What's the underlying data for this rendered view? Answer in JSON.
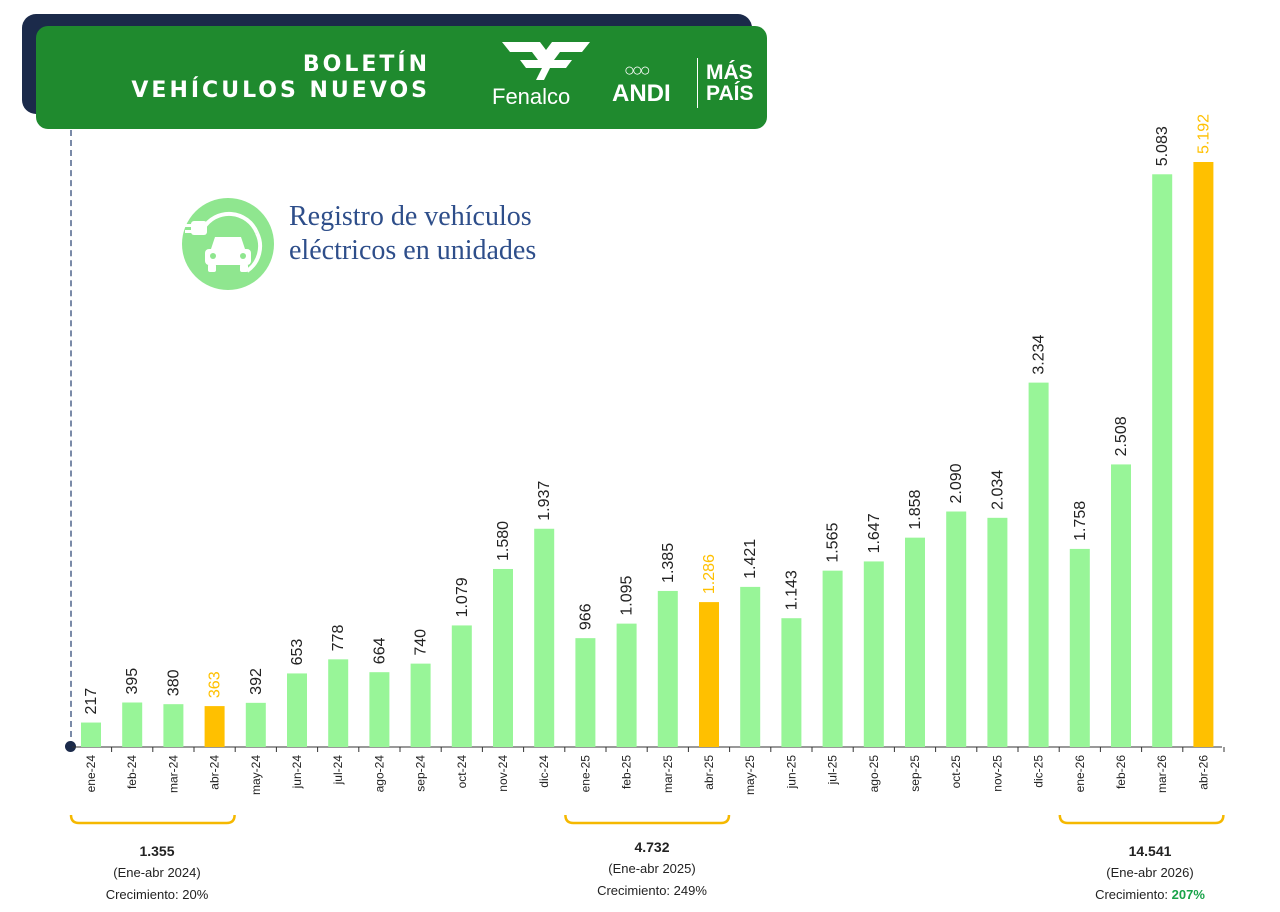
{
  "banner": {
    "title_line1": "BOLETÍN",
    "title_line2": "VEHÍCULOS NUEVOS",
    "logo_fenalco": "Fenalco",
    "logo_andi": "ANDI",
    "logo_mas": "MÁS",
    "logo_pais": "PAÍS"
  },
  "title": {
    "line1": "Registro de vehículos",
    "line2": "eléctricos  en unidades"
  },
  "colors": {
    "bar": "#98f598",
    "highlight": "#ffc000",
    "label": "#222222",
    "highlight_label": "#ffc000",
    "banner": "#1f8a2e",
    "growth_green": "#19a34a",
    "bracket": "#f5b800"
  },
  "icons": {
    "ev": "electric-car-plug-icon"
  },
  "chart_data": {
    "type": "bar",
    "categories": [
      "ene-24",
      "feb-24",
      "mar-24",
      "abr-24",
      "may-24",
      "jun-24",
      "jul-24",
      "ago-24",
      "sep-24",
      "oct-24",
      "nov-24",
      "dic-24",
      "ene-25",
      "feb-25",
      "mar-25",
      "abr-25",
      "may-25",
      "jun-25",
      "jul-25",
      "ago-25",
      "sep-25",
      "oct-25",
      "nov-25",
      "dic-25",
      "ene-26",
      "feb-26",
      "mar-26",
      "abr-26"
    ],
    "values": [
      217,
      395,
      380,
      363,
      392,
      653,
      778,
      664,
      740,
      1079,
      1580,
      1937,
      966,
      1095,
      1385,
      1286,
      1421,
      1143,
      1565,
      1647,
      1858,
      2090,
      2034,
      3234,
      1758,
      2508,
      5083,
      5192
    ],
    "value_labels": [
      "217",
      "395",
      "380",
      "363",
      "392",
      "653",
      "778",
      "664",
      "740",
      "1.079",
      "1.580",
      "1.937",
      "966",
      "1.095",
      "1.385",
      "1.286",
      "1.421",
      "1.143",
      "1.565",
      "1.647",
      "1.858",
      "2.090",
      "2.034",
      "3.234",
      "1.758",
      "2.508",
      "5.083",
      "5.192"
    ],
    "highlighted": [
      "abr-24",
      "abr-25",
      "abr-26"
    ],
    "ylim": [
      0,
      5192
    ]
  },
  "summaries": [
    {
      "total": "1.355",
      "period": "(Ene-abr 2024)",
      "growth_label": "Crecimiento: ",
      "growth_value": "20%",
      "growth_green": false
    },
    {
      "total": "4.732",
      "period": "(Ene-abr 2025)",
      "growth_label": "Crecimiento: ",
      "growth_value": "249%",
      "growth_green": false
    },
    {
      "total": "14.541",
      "period": "(Ene-abr 2026)",
      "growth_label": "Crecimiento: ",
      "growth_value": "207%",
      "growth_green": true
    }
  ]
}
